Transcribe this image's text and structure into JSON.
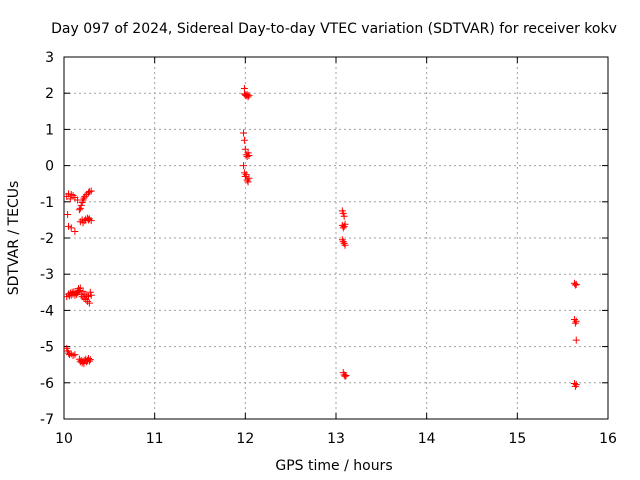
{
  "chart_data": {
    "type": "scatter",
    "title": "Day 097 of 2024, Sidereal Day-to-day VTEC variation (SDTVAR) for receiver kokv",
    "xlabel": "GPS time / hours",
    "ylabel": "SDTVAR / TECUs",
    "xlim": [
      10,
      16
    ],
    "ylim": [
      -7,
      3
    ],
    "xticks": [
      10,
      11,
      12,
      13,
      14,
      15,
      16
    ],
    "yticks": [
      -7,
      -6,
      -5,
      -4,
      -3,
      -2,
      -1,
      0,
      1,
      2,
      3
    ],
    "grid": true,
    "marker": "+",
    "colors": {
      "marker": "#ff0000",
      "grid": "#a0a0a0",
      "axis": "#000000"
    },
    "series": [
      {
        "name": "SDTVAR",
        "points": [
          [
            10.03,
            -0.85
          ],
          [
            10.05,
            -0.78
          ],
          [
            10.07,
            -0.92
          ],
          [
            10.08,
            -0.8
          ],
          [
            10.1,
            -0.83
          ],
          [
            10.12,
            -0.88
          ],
          [
            10.15,
            -0.95
          ],
          [
            10.04,
            -1.35
          ],
          [
            10.05,
            -1.68
          ],
          [
            10.08,
            -1.72
          ],
          [
            10.12,
            -1.82
          ],
          [
            10.17,
            -1.22
          ],
          [
            10.18,
            -1.18
          ],
          [
            10.19,
            -1.1
          ],
          [
            10.2,
            -1.02
          ],
          [
            10.21,
            -0.95
          ],
          [
            10.22,
            -0.9
          ],
          [
            10.23,
            -0.85
          ],
          [
            10.25,
            -0.8
          ],
          [
            10.27,
            -0.75
          ],
          [
            10.28,
            -0.72
          ],
          [
            10.3,
            -0.7
          ],
          [
            10.18,
            -1.55
          ],
          [
            10.2,
            -1.5
          ],
          [
            10.21,
            -1.58
          ],
          [
            10.23,
            -1.52
          ],
          [
            10.24,
            -1.48
          ],
          [
            10.26,
            -1.45
          ],
          [
            10.27,
            -1.5
          ],
          [
            10.28,
            -1.47
          ],
          [
            10.3,
            -1.52
          ],
          [
            10.03,
            -3.62
          ],
          [
            10.05,
            -3.55
          ],
          [
            10.06,
            -3.6
          ],
          [
            10.07,
            -3.52
          ],
          [
            10.08,
            -3.58
          ],
          [
            10.09,
            -3.5
          ],
          [
            10.1,
            -3.55
          ],
          [
            10.11,
            -3.48
          ],
          [
            10.12,
            -3.58
          ],
          [
            10.13,
            -3.52
          ],
          [
            10.14,
            -3.56
          ],
          [
            10.15,
            -3.5
          ],
          [
            10.16,
            -3.4
          ],
          [
            10.17,
            -3.45
          ],
          [
            10.18,
            -3.38
          ],
          [
            10.19,
            -3.55
          ],
          [
            10.2,
            -3.62
          ],
          [
            10.21,
            -3.48
          ],
          [
            10.22,
            -3.66
          ],
          [
            10.23,
            -3.55
          ],
          [
            10.24,
            -3.7
          ],
          [
            10.25,
            -3.6
          ],
          [
            10.26,
            -3.75
          ],
          [
            10.27,
            -3.62
          ],
          [
            10.28,
            -3.8
          ],
          [
            10.29,
            -3.5
          ],
          [
            10.3,
            -3.58
          ],
          [
            10.03,
            -5.05
          ],
          [
            10.04,
            -5.12
          ],
          [
            10.05,
            -5.18
          ],
          [
            10.06,
            -5.22
          ],
          [
            10.08,
            -5.2
          ],
          [
            10.1,
            -5.25
          ],
          [
            10.12,
            -5.22
          ],
          [
            10.17,
            -5.35
          ],
          [
            10.18,
            -5.42
          ],
          [
            10.19,
            -5.38
          ],
          [
            10.2,
            -5.45
          ],
          [
            10.21,
            -5.4
          ],
          [
            10.22,
            -5.47
          ],
          [
            10.23,
            -5.38
          ],
          [
            10.24,
            -5.35
          ],
          [
            10.25,
            -5.42
          ],
          [
            10.26,
            -5.38
          ],
          [
            10.27,
            -5.33
          ],
          [
            10.28,
            -5.4
          ],
          [
            10.29,
            -5.36
          ],
          [
            11.99,
            2.13
          ],
          [
            11.99,
            1.98
          ],
          [
            12.0,
            1.95
          ],
          [
            12.01,
            1.93
          ],
          [
            12.02,
            1.96
          ],
          [
            12.03,
            1.9
          ],
          [
            12.04,
            1.94
          ],
          [
            11.98,
            0.9
          ],
          [
            11.99,
            0.7
          ],
          [
            12.0,
            0.45
          ],
          [
            12.01,
            0.3
          ],
          [
            12.02,
            0.25
          ],
          [
            12.03,
            0.35
          ],
          [
            12.04,
            0.28
          ],
          [
            11.98,
            0.0
          ],
          [
            11.99,
            -0.2
          ],
          [
            12.0,
            -0.3
          ],
          [
            12.01,
            -0.25
          ],
          [
            12.02,
            -0.4
          ],
          [
            12.03,
            -0.45
          ],
          [
            12.04,
            -0.35
          ],
          [
            13.07,
            -1.25
          ],
          [
            13.08,
            -1.32
          ],
          [
            13.09,
            -1.4
          ],
          [
            13.07,
            -1.65
          ],
          [
            13.08,
            -1.72
          ],
          [
            13.09,
            -1.68
          ],
          [
            13.1,
            -1.62
          ],
          [
            13.07,
            -2.05
          ],
          [
            13.08,
            -2.1
          ],
          [
            13.09,
            -2.15
          ],
          [
            13.1,
            -2.2
          ],
          [
            13.08,
            -5.72
          ],
          [
            13.09,
            -5.78
          ],
          [
            13.1,
            -5.82
          ],
          [
            13.11,
            -5.8
          ],
          [
            15.63,
            -3.25
          ],
          [
            15.64,
            -3.3
          ],
          [
            15.65,
            -3.28
          ],
          [
            15.63,
            -4.25
          ],
          [
            15.64,
            -4.35
          ],
          [
            15.65,
            -4.3
          ],
          [
            15.65,
            -4.82
          ],
          [
            15.63,
            -6.02
          ],
          [
            15.64,
            -6.1
          ],
          [
            15.65,
            -6.05
          ]
        ]
      }
    ]
  }
}
